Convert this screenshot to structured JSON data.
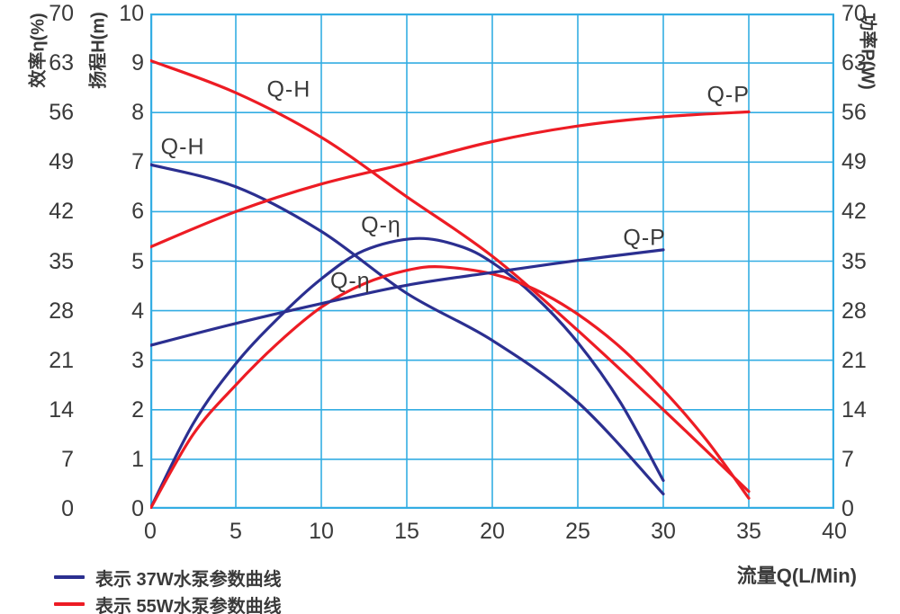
{
  "colors": {
    "grid": "#33ade3",
    "blue": "#2b2f90",
    "red": "#ed1c24",
    "text": "#3a3a3a"
  },
  "axes": {
    "eta": {
      "title": "效率η(%)",
      "ticks": [
        70,
        63,
        56,
        49,
        42,
        35,
        28,
        21,
        14,
        7,
        0
      ]
    },
    "head": {
      "title": "扬程H(m)",
      "ticks": [
        10,
        9,
        8,
        7,
        6,
        5,
        4,
        3,
        2,
        1,
        0
      ]
    },
    "power": {
      "title": "功率P(W)",
      "ticks": [
        70,
        63,
        56,
        49,
        42,
        35,
        28,
        21,
        14,
        7,
        0
      ]
    },
    "flow": {
      "title": "流量Q(L/Min)",
      "ticks": [
        0,
        5,
        10,
        15,
        20,
        25,
        30,
        35,
        40
      ]
    }
  },
  "legend": {
    "items": [
      {
        "color": "blue",
        "label": "表示 37W水泵参数曲线"
      },
      {
        "color": "red",
        "label": "表示 55W水泵参数曲线"
      }
    ]
  },
  "chart_data": {
    "type": "line",
    "title": "",
    "xlabel": "流量Q(L/Min)",
    "x_range": [
      0,
      40
    ],
    "x_tick_step": 5,
    "y_axis_head": {
      "label": "扬程H(m)",
      "range": [
        0,
        10
      ],
      "tick_step": 1
    },
    "y_axis_eta": {
      "label": "效率η(%)",
      "range": [
        0,
        70
      ],
      "tick_step": 7
    },
    "y_axis_power": {
      "label": "功率P(W)",
      "range": [
        0,
        70
      ],
      "tick_step": 7
    },
    "grid": true,
    "legend_position": "bottom-left",
    "series": [
      {
        "name": "37W Q-H",
        "pump": "37W",
        "curve": "Q-H",
        "color": "blue",
        "axis": "H",
        "x": [
          0,
          5,
          10,
          15,
          20,
          25,
          30
        ],
        "y": [
          6.95,
          6.5,
          5.6,
          4.35,
          3.4,
          2.15,
          0.3
        ]
      },
      {
        "name": "55W Q-H",
        "pump": "55W",
        "curve": "Q-H",
        "color": "red",
        "axis": "H",
        "x": [
          0,
          5,
          10,
          15,
          20,
          25,
          30,
          35
        ],
        "y": [
          9.05,
          8.4,
          7.5,
          6.3,
          5.1,
          3.6,
          2.0,
          0.35
        ]
      },
      {
        "name": "37W Q-η",
        "pump": "37W",
        "curve": "Q-η",
        "color": "blue",
        "axis": "W",
        "x": [
          0,
          2.5,
          5,
          7.5,
          10,
          12.5,
          15.5,
          18,
          20,
          22.5,
          25,
          27.5,
          30
        ],
        "y": [
          0,
          12,
          20.5,
          27,
          32.5,
          36.5,
          38.2,
          37.2,
          34.8,
          30,
          23.5,
          15,
          4
        ]
      },
      {
        "name": "55W Q-η",
        "pump": "55W",
        "curve": "Q-η",
        "color": "red",
        "axis": "W",
        "x": [
          0,
          2.5,
          5,
          7.5,
          10,
          12.5,
          15,
          17,
          20,
          22.5,
          25,
          27.5,
          30,
          32.5,
          35
        ],
        "y": [
          0,
          10.5,
          17.5,
          23.5,
          28.5,
          31.8,
          33.7,
          34.2,
          33.2,
          31,
          27.5,
          22.8,
          16.8,
          9.8,
          1.5
        ]
      },
      {
        "name": "37W Q-P",
        "pump": "37W",
        "curve": "Q-P",
        "color": "blue",
        "axis": "W",
        "x": [
          0,
          5,
          10,
          15,
          20,
          25,
          30
        ],
        "y": [
          23.1,
          26.2,
          29,
          31.6,
          33.4,
          35.1,
          36.6
        ]
      },
      {
        "name": "55W Q-P",
        "pump": "55W",
        "curve": "Q-P",
        "color": "red",
        "axis": "W",
        "x": [
          0,
          5,
          10,
          15,
          20,
          25,
          30,
          35
        ],
        "y": [
          37,
          42,
          45.9,
          48.8,
          51.9,
          54.1,
          55.4,
          56.1
        ]
      }
    ],
    "curve_labels": [
      {
        "text": "Q-H",
        "series": "55W Q-H",
        "q": 8.1,
        "val": 8.45,
        "axis": "H"
      },
      {
        "text": "Q-H",
        "series": "37W Q-H",
        "q": 1.9,
        "val": 7.3,
        "axis": "H"
      },
      {
        "text": "Q-η",
        "series": "37W Q-η",
        "q": 13.5,
        "val": 40.0,
        "axis": "W"
      },
      {
        "text": "Q-η",
        "series": "55W Q-η",
        "q": 11.7,
        "val": 32.2,
        "axis": "W"
      },
      {
        "text": "Q-P",
        "series": "37W Q-P",
        "q": 28.9,
        "val": 38.3,
        "axis": "W"
      },
      {
        "text": "Q-P",
        "series": "55W Q-P",
        "q": 33.8,
        "val": 58.4,
        "axis": "W"
      }
    ]
  }
}
